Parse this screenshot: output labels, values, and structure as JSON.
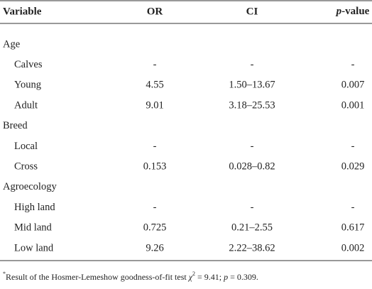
{
  "header": {
    "columns": [
      "Variable",
      "OR",
      "CI",
      [
        "p",
        "-value"
      ]
    ]
  },
  "table": {
    "rows": [
      {
        "label": "Age"
      },
      {
        "label": "Calves",
        "cells": [
          "-",
          "-",
          "-"
        ]
      },
      {
        "label": "Young",
        "cells": [
          "4.55",
          "1.50–13.67",
          "0.007"
        ]
      },
      {
        "label": "Adult",
        "cells": [
          "9.01",
          "3.18–25.53",
          "0.001"
        ]
      },
      {
        "label": "Breed"
      },
      {
        "label": "Local",
        "cells": [
          "-",
          "-",
          "-"
        ]
      },
      {
        "label": "Cross",
        "cells": [
          "0.153",
          "0.028–0.82",
          "0.029"
        ]
      },
      {
        "label": "Agroecology"
      },
      {
        "label": "High land",
        "cells": [
          "-",
          "-",
          "-"
        ]
      },
      {
        "label": "Mid land",
        "cells": [
          "0.725",
          "0.21–2.55",
          "0.617"
        ]
      },
      {
        "label": "Low land",
        "cells": [
          "9.26",
          "2.22–38.62",
          "0.002"
        ]
      }
    ]
  },
  "footnote": [
    "*",
    "Result of the Hosmer-Lemeshow goodness-of-fit test ",
    "χ",
    "2",
    " = 9.41; ",
    "p",
    " = 0.309."
  ]
}
